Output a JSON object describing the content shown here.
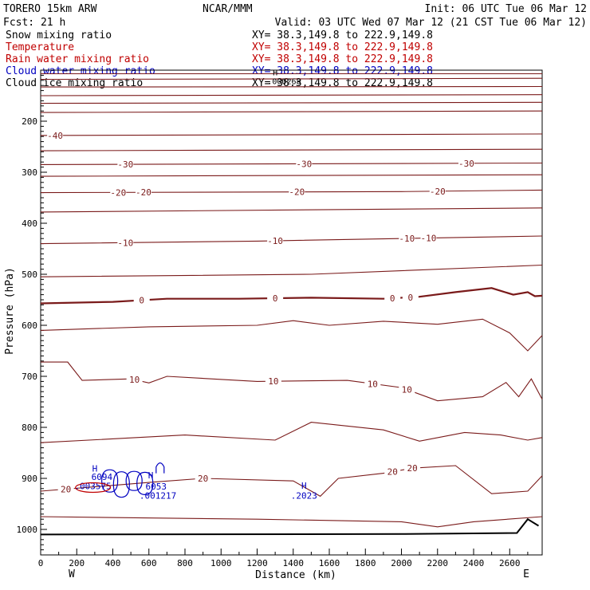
{
  "header": {
    "model": "TORERO  15km ARW",
    "org": "NCAR/MMM",
    "init": "Init: 06 UTC Tue 06 Mar 12",
    "fcst": "Fcst:    21 h",
    "valid": "Valid: 03 UTC Wed 07 Mar 12 (21 CST Tue 06 Mar 12)"
  },
  "legend": [
    {
      "label": "Snow mixing ratio",
      "xy": "XY=  38.3,149.8 to 222.9,149.8",
      "color": "#000000"
    },
    {
      "label": "Temperature",
      "xy": "XY=  38.3,149.8 to 222.9,149.8",
      "color": "#c00000"
    },
    {
      "label": "Rain water mixing ratio",
      "xy": "XY=  38.3,149.8 to 222.9,149.8",
      "color": "#c00000"
    },
    {
      "label": "Cloud water mixing ratio",
      "xy": "XY=  38.3,149.8 to 222.9,149.8",
      "color": "#0000c0"
    },
    {
      "label": "Cloud ice mixing ratio",
      "xy": "XY=  38.3,149.8 to 222.9,149.8",
      "color": "#000000"
    }
  ],
  "chart_data": {
    "type": "line",
    "title": "",
    "xlabel": "Distance (km)",
    "ylabel": "Pressure (hPa)",
    "xlim": [
      0,
      2780
    ],
    "ylim": [
      1050,
      100
    ],
    "xticks": [
      0,
      200,
      400,
      600,
      800,
      1000,
      1200,
      1400,
      1600,
      1800,
      2000,
      2200,
      2400,
      2600
    ],
    "yticks": [
      200,
      300,
      400,
      500,
      600,
      700,
      800,
      900,
      1000
    ],
    "x_end_labels": {
      "left": "W",
      "right": "E"
    },
    "isotherm_color": "#7a1a1a",
    "cloud_color": "#0000c0",
    "rain_color": "#c00000",
    "isotherms": [
      {
        "value": -60,
        "points": [
          [
            0,
            107
          ],
          [
            2780,
            107
          ]
        ],
        "labels": []
      },
      {
        "value": -55,
        "points": [
          [
            0,
            118
          ],
          [
            1500,
            117
          ],
          [
            2780,
            116
          ]
        ],
        "labels": []
      },
      {
        "value": -50,
        "points": [
          [
            0,
            133
          ],
          [
            2780,
            132
          ]
        ],
        "labels": []
      },
      {
        "value": -50,
        "points": [
          [
            0,
            150
          ],
          [
            2780,
            148
          ]
        ],
        "labels": []
      },
      {
        "value": -45,
        "points": [
          [
            0,
            165
          ],
          [
            2780,
            163
          ]
        ],
        "labels": []
      },
      {
        "value": -45,
        "points": [
          [
            0,
            183
          ],
          [
            2780,
            180
          ]
        ],
        "labels": []
      },
      {
        "value": -40,
        "points": [
          [
            0,
            228
          ],
          [
            2780,
            225
          ]
        ],
        "labels": [
          {
            "x": 80,
            "text": "-40"
          }
        ]
      },
      {
        "value": -35,
        "points": [
          [
            0,
            258
          ],
          [
            2780,
            255
          ]
        ],
        "labels": []
      },
      {
        "value": -30,
        "points": [
          [
            0,
            285
          ],
          [
            2780,
            282
          ]
        ],
        "labels": [
          {
            "x": 470,
            "text": "-30"
          },
          {
            "x": 1460,
            "text": "-30"
          },
          {
            "x": 2360,
            "text": "-30"
          }
        ]
      },
      {
        "value": -25,
        "points": [
          [
            0,
            308
          ],
          [
            2780,
            305
          ]
        ],
        "labels": []
      },
      {
        "value": -20,
        "points": [
          [
            0,
            340
          ],
          [
            2000,
            338
          ],
          [
            2780,
            335
          ]
        ],
        "labels": [
          {
            "x": 430,
            "text": "-20"
          },
          {
            "x": 570,
            "text": "-20"
          },
          {
            "x": 1420,
            "text": "-20"
          },
          {
            "x": 2200,
            "text": "-20"
          }
        ]
      },
      {
        "value": -15,
        "points": [
          [
            0,
            378
          ],
          [
            2780,
            370
          ]
        ],
        "labels": []
      },
      {
        "value": -10,
        "points": [
          [
            0,
            440
          ],
          [
            1200,
            435
          ],
          [
            2780,
            425
          ]
        ],
        "labels": [
          {
            "x": 470,
            "text": "-10"
          },
          {
            "x": 1300,
            "text": "-10"
          },
          {
            "x": 2030,
            "text": "-10"
          },
          {
            "x": 2150,
            "text": "-10"
          }
        ]
      },
      {
        "value": -5,
        "points": [
          [
            0,
            505
          ],
          [
            1500,
            500
          ],
          [
            2780,
            482
          ]
        ],
        "labels": []
      },
      {
        "value": 0,
        "bold": true,
        "points": [
          [
            0,
            557
          ],
          [
            400,
            554
          ],
          [
            700,
            548
          ],
          [
            1100,
            548
          ],
          [
            1500,
            546
          ],
          [
            1900,
            548
          ],
          [
            2100,
            544
          ],
          [
            2300,
            535
          ],
          [
            2500,
            527
          ],
          [
            2620,
            540
          ],
          [
            2700,
            535
          ],
          [
            2740,
            543
          ],
          [
            2780,
            542
          ]
        ],
        "labels": [
          {
            "x": 560,
            "text": "0"
          },
          {
            "x": 1300,
            "text": "0"
          },
          {
            "x": 1950,
            "text": "0"
          },
          {
            "x": 2050,
            "text": "0"
          }
        ]
      },
      {
        "value": 5,
        "points": [
          [
            0,
            610
          ],
          [
            600,
            603
          ],
          [
            1200,
            600
          ],
          [
            1400,
            591
          ],
          [
            1600,
            600
          ],
          [
            1900,
            592
          ],
          [
            2200,
            598
          ],
          [
            2450,
            588
          ],
          [
            2600,
            615
          ],
          [
            2700,
            650
          ],
          [
            2780,
            620
          ]
        ],
        "labels": []
      },
      {
        "value": 10,
        "points": [
          [
            0,
            672
          ],
          [
            150,
            672
          ],
          [
            230,
            708
          ],
          [
            500,
            705
          ],
          [
            600,
            713
          ],
          [
            700,
            700
          ],
          [
            1200,
            710
          ],
          [
            1700,
            708
          ],
          [
            2000,
            722
          ],
          [
            2200,
            748
          ],
          [
            2450,
            740
          ],
          [
            2580,
            712
          ],
          [
            2650,
            740
          ],
          [
            2720,
            705
          ],
          [
            2780,
            745
          ]
        ],
        "labels": [
          {
            "x": 520,
            "text": "10"
          },
          {
            "x": 1290,
            "text": "10"
          },
          {
            "x": 1840,
            "text": "10"
          },
          {
            "x": 2030,
            "text": "10"
          }
        ]
      },
      {
        "value": 15,
        "points": [
          [
            0,
            830
          ],
          [
            800,
            815
          ],
          [
            1300,
            825
          ],
          [
            1500,
            790
          ],
          [
            1900,
            805
          ],
          [
            2100,
            827
          ],
          [
            2350,
            810
          ],
          [
            2550,
            815
          ],
          [
            2700,
            825
          ],
          [
            2780,
            820
          ]
        ],
        "labels": []
      },
      {
        "value": 20,
        "points": [
          [
            0,
            925
          ],
          [
            600,
            908
          ],
          [
            900,
            900
          ],
          [
            1400,
            905
          ],
          [
            1550,
            935
          ],
          [
            1650,
            900
          ],
          [
            1900,
            890
          ],
          [
            2060,
            880
          ],
          [
            2300,
            875
          ],
          [
            2500,
            930
          ],
          [
            2700,
            925
          ],
          [
            2780,
            895
          ]
        ],
        "labels": [
          {
            "x": 140,
            "text": "20"
          },
          {
            "x": 900,
            "text": "20"
          },
          {
            "x": 1950,
            "text": "20"
          },
          {
            "x": 2060,
            "text": "20"
          }
        ]
      },
      {
        "value": 25,
        "points": [
          [
            0,
            975
          ],
          [
            1200,
            980
          ],
          [
            2000,
            985
          ],
          [
            2200,
            995
          ],
          [
            2400,
            985
          ],
          [
            2780,
            975
          ]
        ],
        "labels": []
      }
    ],
    "surface": {
      "points": [
        [
          0,
          1010
        ],
        [
          2000,
          1009
        ],
        [
          2640,
          1007
        ],
        [
          2700,
          980
        ],
        [
          2760,
          993
        ]
      ]
    },
    "cloud_annotations": [
      {
        "x": 300,
        "p": 887,
        "text": "H"
      },
      {
        "x": 340,
        "p": 903,
        "text": "6094"
      },
      {
        "x": 290,
        "p": 921,
        "text": ".003575"
      },
      {
        "x": 610,
        "p": 900,
        "text": "H"
      },
      {
        "x": 640,
        "p": 922,
        "text": "6053"
      },
      {
        "x": 650,
        "p": 940,
        "text": ".001217"
      },
      {
        "x": 1460,
        "p": 920,
        "text": "H"
      },
      {
        "x": 1460,
        "p": 940,
        "text": ".2023"
      }
    ],
    "snow_annotations": [
      {
        "x": 1300,
        "p": 110,
        "text": "H"
      },
      {
        "x": 1350,
        "p": 127,
        "text": ".000268"
      }
    ],
    "rain_annotation": {
      "x": 290,
      "p": 921,
      "text": "H"
    }
  }
}
